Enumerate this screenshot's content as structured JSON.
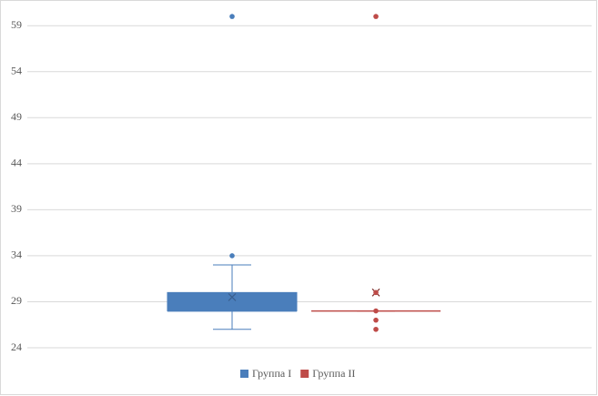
{
  "chart_data": {
    "type": "box",
    "series": [
      {
        "name": "Группа I",
        "color": "#4a7ebb",
        "min": 26,
        "q1": 28,
        "median": 28,
        "q3": 30,
        "max": 33,
        "mean": 29.5,
        "outliers": [
          34,
          60
        ]
      },
      {
        "name": "Группа II",
        "color": "#be4b48",
        "min": 28,
        "q1": 28,
        "median": 28,
        "q3": 28,
        "max": 28,
        "mean": 30,
        "outliers": [
          60,
          30,
          28,
          27,
          26
        ]
      }
    ],
    "ylim": [
      24,
      61
    ],
    "yticks": [
      24,
      29,
      34,
      39,
      44,
      49,
      54,
      59
    ],
    "grid": true,
    "legend": "bottom"
  }
}
